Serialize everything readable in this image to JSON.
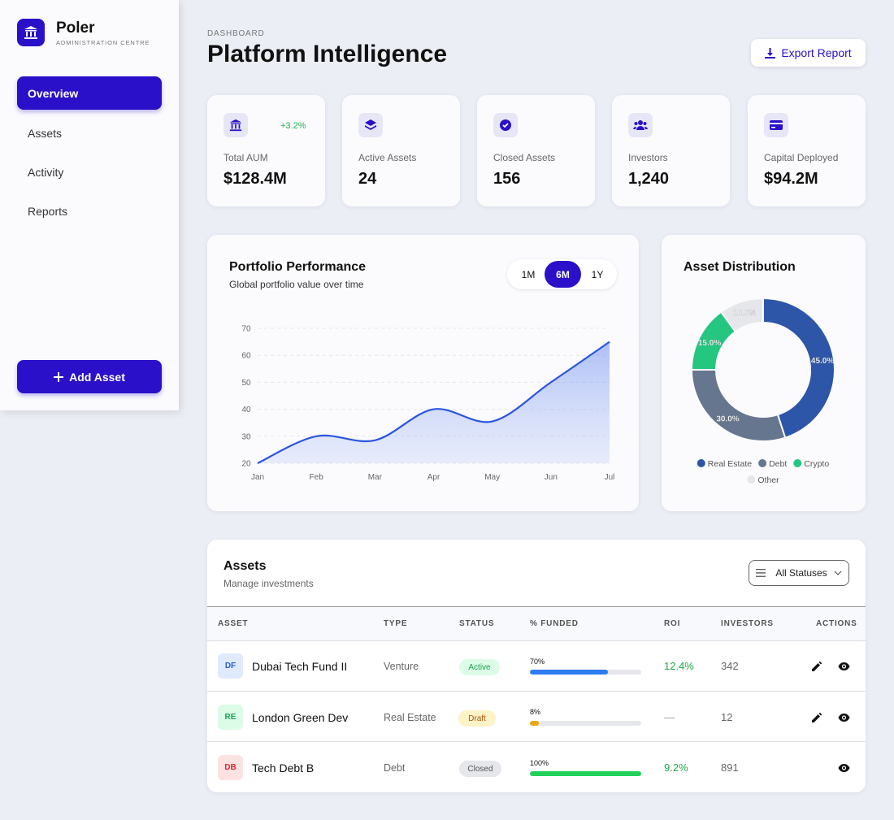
{
  "sidebar": {
    "brand": "Poler",
    "subtitle": "ADMINISTRATION CENTRE",
    "nav": [
      "Overview",
      "Assets",
      "Activity",
      "Reports"
    ],
    "button": "Add Asset"
  },
  "header": {
    "eyebrow": "DASHBOARD",
    "title": "Platform Intelligence",
    "export": "Export Report"
  },
  "stats": [
    {
      "label": "Total AUM",
      "value": "$128.4M",
      "change": "+3.2%"
    },
    {
      "label": "Active Assets",
      "value": 24
    },
    {
      "label": "Closed Assets",
      "value": 156
    },
    {
      "label": "Investors",
      "value": "1,240"
    },
    {
      "label": "Capital Deployed",
      "value": "$94.2M"
    }
  ],
  "chart_data": [
    {
      "type": "line",
      "title": "Portfolio Performance",
      "subtitle": "Global portfolio value over time",
      "ranges": [
        "1M",
        "6M",
        "1Y"
      ],
      "categories": [
        "Jan",
        "Feb",
        "Mar",
        "Apr",
        "May",
        "Jun",
        "Jul"
      ],
      "values": [
        20,
        30,
        28.5,
        40,
        35.5,
        50,
        65
      ],
      "color": "#2a55e0",
      "ylim": [
        20,
        70
      ],
      "yticks": [
        20,
        30,
        40,
        50,
        60,
        70
      ],
      "grid": true
    },
    {
      "type": "pie",
      "title": "Asset Distribution",
      "categories": [
        "Real Estate",
        "Debt",
        "Crypto",
        "Other"
      ],
      "values": [
        45,
        30,
        15,
        10
      ],
      "value_labels": [
        "45.0%",
        "30.0%",
        "15.0%",
        "10.0%"
      ],
      "colors": [
        "#2d56a8",
        "#66768e",
        "#24c680",
        "#e5e7eb"
      ]
    }
  ],
  "assets_table": {
    "title": "Assets",
    "subtitle": "Manage investments",
    "filter": "All Statuses",
    "columns": [
      "ASSET",
      "TYPE",
      "STATUS",
      "% FUNDED",
      "ROI",
      "INVESTORS",
      "ACTIONS"
    ],
    "rows": [
      {
        "initials": "DF",
        "name": "Dubai Tech Fund II",
        "type": "Venture",
        "status": "Active",
        "funded": {
          "value": 70,
          "label": "70%"
        },
        "roi": "12.4%",
        "investors": 342
      },
      {
        "initials": "RE",
        "name": "London Green Dev",
        "type": "Real Estate",
        "status": "Draft",
        "funded": {
          "value": 8,
          "label": "8%"
        },
        "roi": "—",
        "investors": 12
      },
      {
        "initials": "DB",
        "name": "Tech Debt B",
        "type": "Debt",
        "status": "Closed",
        "funded": {
          "value": 100,
          "label": "100%"
        },
        "roi": "9.2%",
        "investors": 891
      }
    ]
  }
}
